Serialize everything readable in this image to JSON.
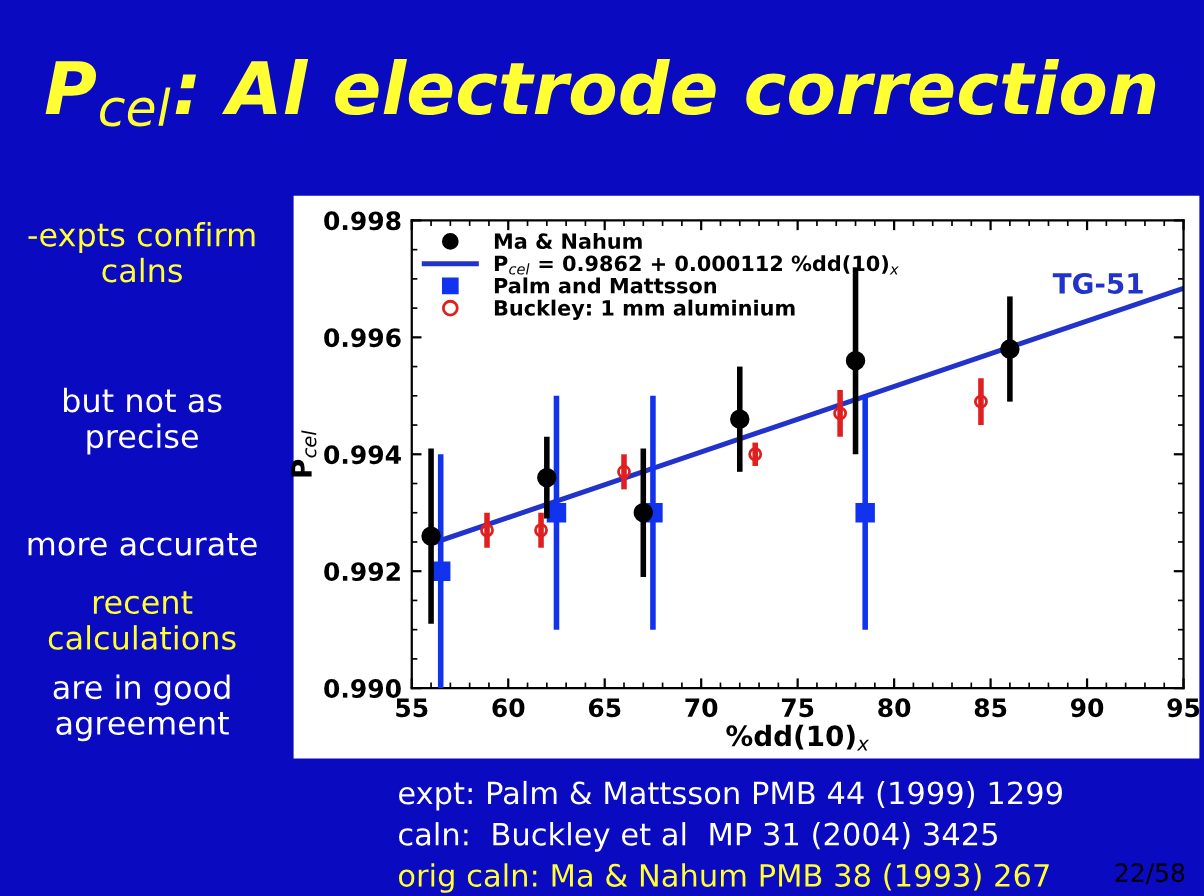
{
  "chart_data": {
    "type": "scatter",
    "title": "P$_{cel}$: Al electrode correction",
    "xlabel": "%dd(10)$_{x}$",
    "ylabel": "P$_{cel}$",
    "xlim": [
      55,
      95
    ],
    "xticks": [
      55,
      60,
      65,
      70,
      75,
      80,
      85,
      90,
      95
    ],
    "ylim": [
      0.99,
      0.998
    ],
    "yticks": [
      {
        "value": 0.99,
        "label": "0.990"
      },
      {
        "value": 0.992,
        "label": "0.992"
      },
      {
        "value": 0.994,
        "label": "0.994"
      },
      {
        "value": 0.996,
        "label": "0.996"
      },
      {
        "value": 0.998,
        "label": "0.998"
      }
    ],
    "grid": false,
    "legend": "top left",
    "series": [
      {
        "name": "Ma & Nahum",
        "marker": "circle",
        "color": "#000000",
        "x": [
          56,
          62,
          67,
          72,
          78,
          86
        ],
        "values": [
          0.9926,
          0.9936,
          0.993,
          0.9946,
          0.9956,
          0.9958
        ],
        "errors": [
          0.0015,
          0.0007,
          0.0011,
          0.0009,
          0.0016,
          0.0009
        ]
      },
      {
        "name": "P$_{cel}$ = 0.9862 + 0.000112 %dd(10)$_{x}$",
        "type": "line",
        "marker": "none",
        "color": "#2233cc",
        "x": [
          56,
          95
        ],
        "values": [
          0.99247,
          0.99684
        ]
      },
      {
        "name": "Palm and Mattsson",
        "marker": "square",
        "color": "#1133ee",
        "x": [
          56.5,
          62.5,
          67.5,
          78.5
        ],
        "values": [
          0.992,
          0.993,
          0.993,
          0.993
        ],
        "errors": [
          0.002,
          0.002,
          0.002,
          0.002
        ]
      },
      {
        "name": "Buckley: 1 mm aluminium",
        "marker": "open circle",
        "color": "#e02020",
        "x": [
          58.9,
          61.7,
          66,
          72.8,
          77.2,
          84.5
        ],
        "values": [
          0.9927,
          0.9927,
          0.9937,
          0.994,
          0.9947,
          0.9949
        ],
        "errors": [
          0.0003,
          0.0003,
          0.0003,
          0.0002,
          0.0004,
          0.0004
        ]
      }
    ],
    "annotations": [
      "TG-51",
      "-expts confirm calns",
      "but not as precise",
      "more accurate",
      "recent calculations",
      "are in good agreement",
      "expt: Palm & Mattsson PMB 44 (1999) 1299",
      "caln:  Buckley et al  MP 31 (2004) 3425",
      "orig caln: Ma & Nahum PMB 38 (1993) 267",
      "22/58"
    ]
  }
}
